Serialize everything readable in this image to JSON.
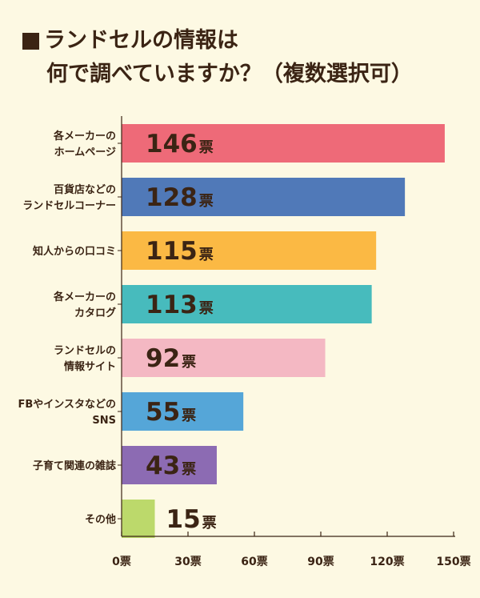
{
  "title": {
    "line1": "ランドセルの情報は",
    "line2": "何で調べていますか？（複数選択可）"
  },
  "chart_data": {
    "type": "bar",
    "orientation": "horizontal",
    "categories": [
      [
        "各メーカーの",
        "ホームページ"
      ],
      [
        "百貨店などの",
        "ランドセルコーナー"
      ],
      [
        "知人からの口コミ"
      ],
      [
        "各メーカーの",
        "カタログ"
      ],
      [
        "ランドセルの",
        "情報サイト"
      ],
      [
        "FBやインスタなどの",
        "SNS"
      ],
      [
        "子育て関連の雑誌"
      ],
      [
        "その他"
      ]
    ],
    "values": [
      146,
      128,
      115,
      113,
      92,
      55,
      43,
      15
    ],
    "colors": [
      "#ee6a78",
      "#5079b8",
      "#fbb944",
      "#47bbbd",
      "#f4b8c3",
      "#55a6d8",
      "#8c6bb3",
      "#bcd96b"
    ],
    "value_unit": "票",
    "xlim": [
      0,
      150
    ],
    "xticks": [
      0,
      30,
      60,
      90,
      120,
      150
    ],
    "xtick_labels": [
      "0票",
      "30票",
      "60票",
      "90票",
      "120票",
      "150票"
    ],
    "grid": false,
    "legend": "none"
  }
}
